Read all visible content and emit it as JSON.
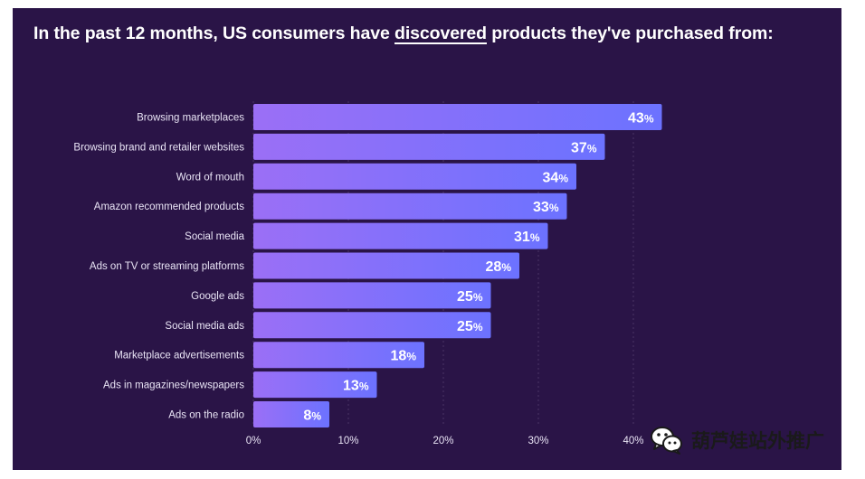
{
  "title": {
    "prefix": "In the past 12 months, US consumers have ",
    "emphasis": "discovered",
    "suffix": " products they've purchased from:"
  },
  "chart_data": {
    "type": "bar",
    "orientation": "horizontal",
    "categories": [
      "Browsing marketplaces",
      "Browsing brand and retailer websites",
      "Word of mouth",
      "Amazon recommended products",
      "Social media",
      "Ads on TV or streaming platforms",
      "Google ads",
      "Social media ads",
      "Marketplace advertisements",
      "Ads in magazines/newspapers",
      "Ads on the radio"
    ],
    "values": [
      43,
      37,
      34,
      33,
      31,
      28,
      25,
      25,
      18,
      13,
      8
    ],
    "value_suffix": "%",
    "xlim": [
      0,
      50
    ],
    "xticks": [
      0,
      10,
      20,
      30,
      40
    ],
    "xtick_labels": [
      "0%",
      "10%",
      "20%",
      "30%",
      "40%"
    ],
    "grid": true
  },
  "colors": {
    "background": "#2a1447",
    "bar_start": "#9b6ff6",
    "bar_end": "#6c72ff",
    "text": "#ffffff",
    "label_text": "#e9e4f5"
  },
  "watermark": {
    "text": "葫芦娃站外推广",
    "icon": "wechat-icon"
  }
}
